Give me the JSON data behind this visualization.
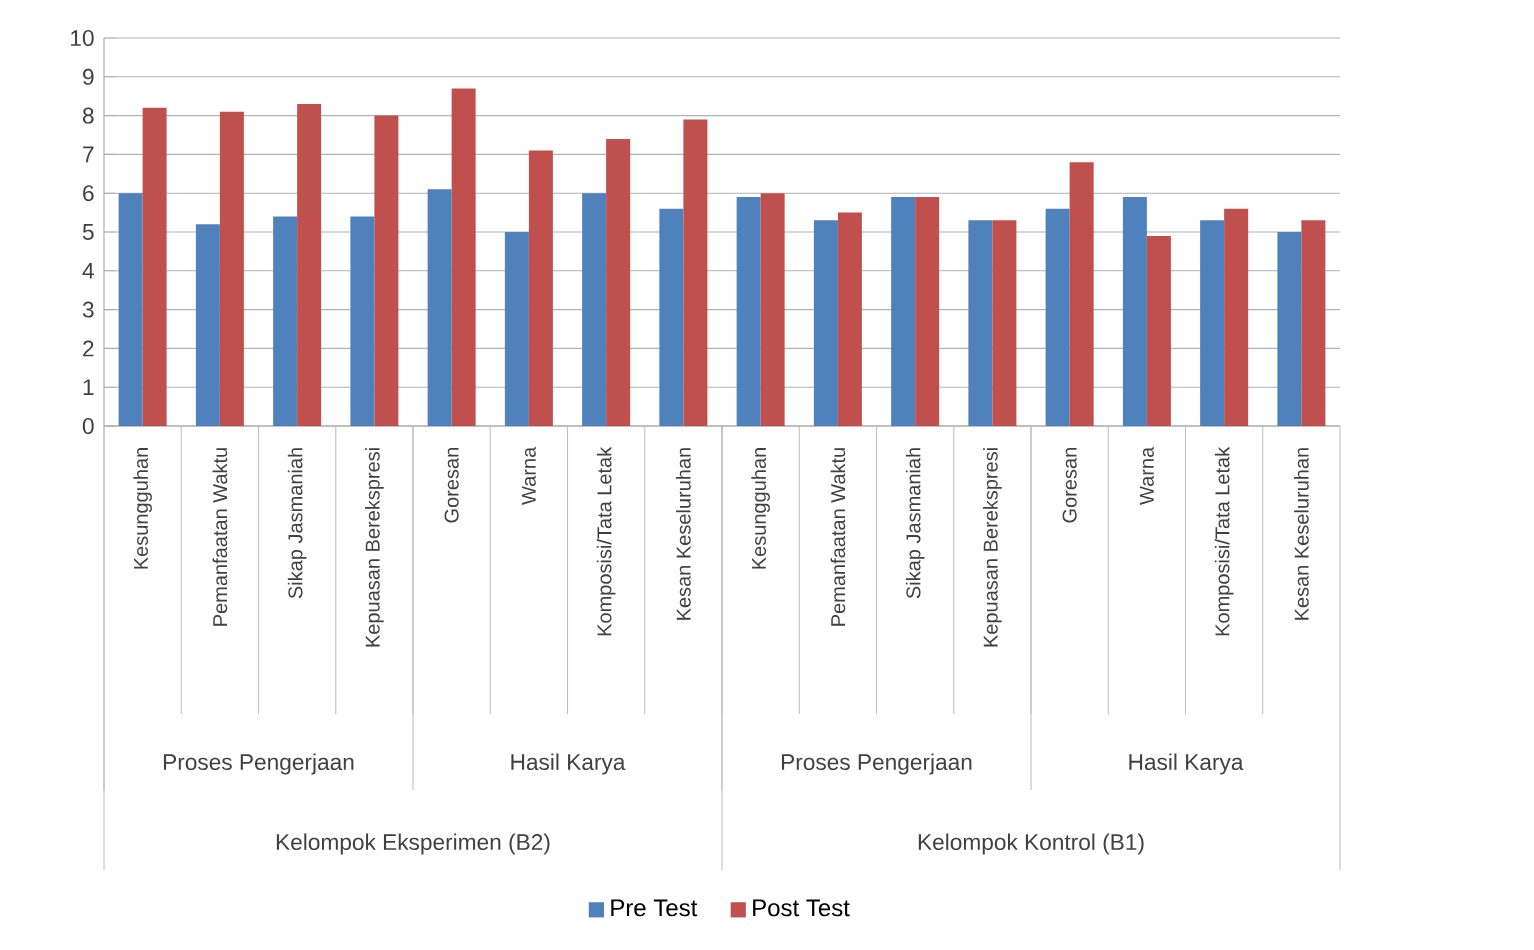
{
  "chart_data": {
    "type": "bar",
    "categories": [
      "Kesungguhan",
      "Pemanfaatan Waktu",
      "Sikap Jasmaniah",
      "Kepuasan Berekspresi",
      "Goresan",
      "Warna",
      "Komposisi/Tata Letak",
      "Kesan Keseluruhan",
      "Kesungguhan",
      "Pemanfaatan Waktu",
      "Sikap Jasmaniah",
      "Kepuasan Berekspresi",
      "Goresan",
      "Warna",
      "Komposisi/Tata Letak",
      "Kesan Keseluruhan"
    ],
    "series": [
      {
        "name": "Pre Test",
        "color": "#4f81bd",
        "values": [
          6.0,
          5.2,
          5.4,
          5.4,
          6.1,
          5.0,
          6.0,
          5.6,
          5.9,
          5.3,
          5.9,
          5.3,
          5.6,
          5.9,
          5.3,
          5.0
        ]
      },
      {
        "name": "Post Test",
        "color": "#c0504d",
        "values": [
          8.2,
          8.1,
          8.3,
          8.0,
          8.7,
          7.1,
          7.4,
          7.9,
          6.0,
          5.5,
          5.9,
          5.3,
          6.8,
          4.9,
          5.6,
          5.3
        ]
      }
    ],
    "ylim": [
      0,
      10
    ],
    "yticks": [
      0,
      1,
      2,
      3,
      4,
      5,
      6,
      7,
      8,
      9,
      10
    ],
    "grid": "y",
    "legend": "bottom",
    "annotations": [
      "Proses Pengerjaan",
      "Hasil Karya",
      "Proses Pengerjaan",
      "Hasil Karya",
      "Kelompok Eksperimen (B2)",
      "Kelompok Kontrol (B1)"
    ]
  }
}
